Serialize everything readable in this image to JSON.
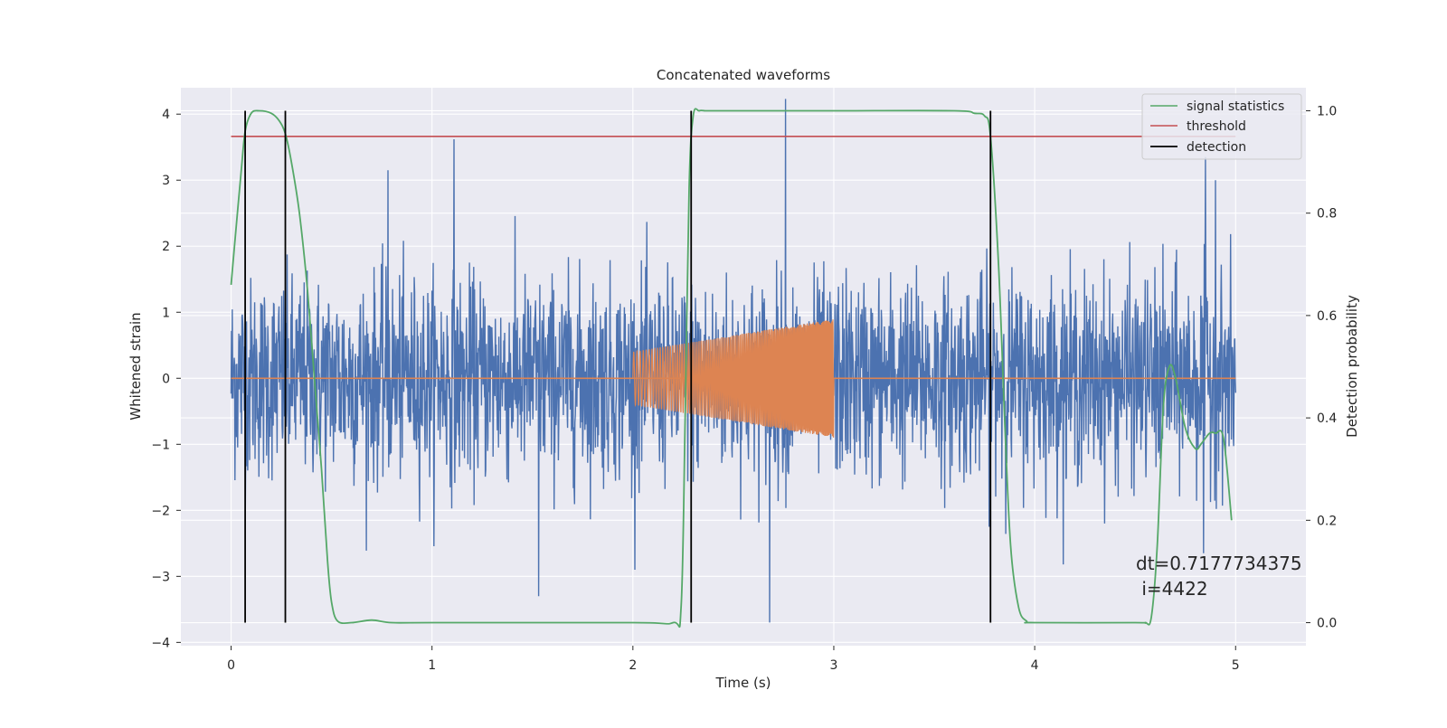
{
  "chart_data": {
    "type": "line",
    "title": "Concatenated waveforms",
    "xlabel": "Time (s)",
    "ylabel_left": "Whitened strain",
    "ylabel_right": "Detection probability",
    "xlim": [
      -0.25,
      5.35
    ],
    "ylim_left": [
      -4.05,
      4.4
    ],
    "ylim_right": [
      -0.045,
      1.045
    ],
    "x_ticks": [
      0,
      1,
      2,
      3,
      4,
      5
    ],
    "x_tick_labels": [
      "0",
      "1",
      "2",
      "3",
      "4",
      "5"
    ],
    "y_left_ticks": [
      -4,
      -3,
      -2,
      -1,
      0,
      1,
      2,
      3,
      4
    ],
    "y_left_tick_labels": [
      "−4",
      "−3",
      "−2",
      "−1",
      "0",
      "1",
      "2",
      "3",
      "4"
    ],
    "y_right_ticks": [
      0.0,
      0.2,
      0.4,
      0.6,
      0.8,
      1.0
    ],
    "y_right_tick_labels": [
      "0.0",
      "0.2",
      "0.4",
      "0.6",
      "0.8",
      "1.0"
    ],
    "grid": true,
    "legend_position": "top-right",
    "colors": {
      "strain": "#4c72b0",
      "injection": "#dd8452",
      "signal_statistics": "#55a868",
      "threshold": "#c44e52",
      "detection": "#000000",
      "plot_bg": "#eaeaf2",
      "grid": "#ffffff"
    },
    "series": [
      {
        "name": "",
        "axis": "left",
        "kind": "noise",
        "x_range": [
          0,
          5
        ],
        "amplitude_std": 0.75,
        "peaks": [
          [
            0.78,
            3.15
          ],
          [
            1.11,
            3.62
          ],
          [
            2.76,
            4.23
          ],
          [
            4.85,
            3.35
          ],
          [
            4.9,
            3.0
          ],
          [
            1.53,
            -3.3
          ],
          [
            2.68,
            -3.7
          ],
          [
            4.84,
            -2.65
          ]
        ]
      },
      {
        "name": "",
        "axis": "left",
        "kind": "chirp",
        "x_range": [
          2.0,
          3.0
        ],
        "amplitude_start": 0.4,
        "amplitude_end": 0.9
      },
      {
        "name": "signal statistics",
        "axis": "right",
        "x": [
          0.0,
          0.02,
          0.05,
          0.07,
          0.1,
          0.14,
          0.2,
          0.24,
          0.27,
          0.3,
          0.34,
          0.38,
          0.42,
          0.45,
          0.48,
          0.5,
          0.53,
          0.6,
          0.7,
          0.8,
          1.0,
          2.0,
          2.2,
          2.24,
          2.26,
          2.28,
          2.3,
          2.33,
          2.36,
          2.4,
          2.5,
          3.0,
          3.6,
          3.7,
          3.75,
          3.78,
          3.82,
          3.85,
          3.88,
          3.92,
          3.96,
          4.0,
          4.5,
          4.55,
          4.58,
          4.61,
          4.64,
          4.67,
          4.7,
          4.75,
          4.8,
          4.83,
          4.87,
          4.9,
          4.94,
          4.98
        ],
        "y": [
          0.66,
          0.75,
          0.88,
          0.96,
          0.995,
          1.0,
          0.995,
          0.98,
          0.955,
          0.9,
          0.8,
          0.65,
          0.45,
          0.3,
          0.12,
          0.04,
          0.003,
          0.0,
          0.005,
          0.0,
          0.0,
          0.0,
          0.0,
          0.03,
          0.4,
          0.85,
          0.99,
          1.0,
          1.0,
          1.0,
          1.0,
          1.0,
          1.0,
          0.995,
          0.99,
          0.95,
          0.7,
          0.4,
          0.15,
          0.03,
          0.003,
          0.0,
          0.0,
          0.0,
          0.01,
          0.15,
          0.42,
          0.5,
          0.48,
          0.38,
          0.34,
          0.35,
          0.37,
          0.37,
          0.36,
          0.2
        ]
      },
      {
        "name": "threshold",
        "axis": "right",
        "x": [
          0,
          5
        ],
        "y": [
          0.95,
          0.95
        ]
      }
    ],
    "detections": {
      "name": "detection",
      "x": [
        0.07,
        0.27,
        2.29,
        3.78
      ],
      "y_range": [
        0.0,
        1.0
      ]
    },
    "legend": [
      "signal statistics",
      "threshold",
      "detection"
    ],
    "annotation": [
      "dt=0.7177734375",
      " i=4422"
    ]
  }
}
